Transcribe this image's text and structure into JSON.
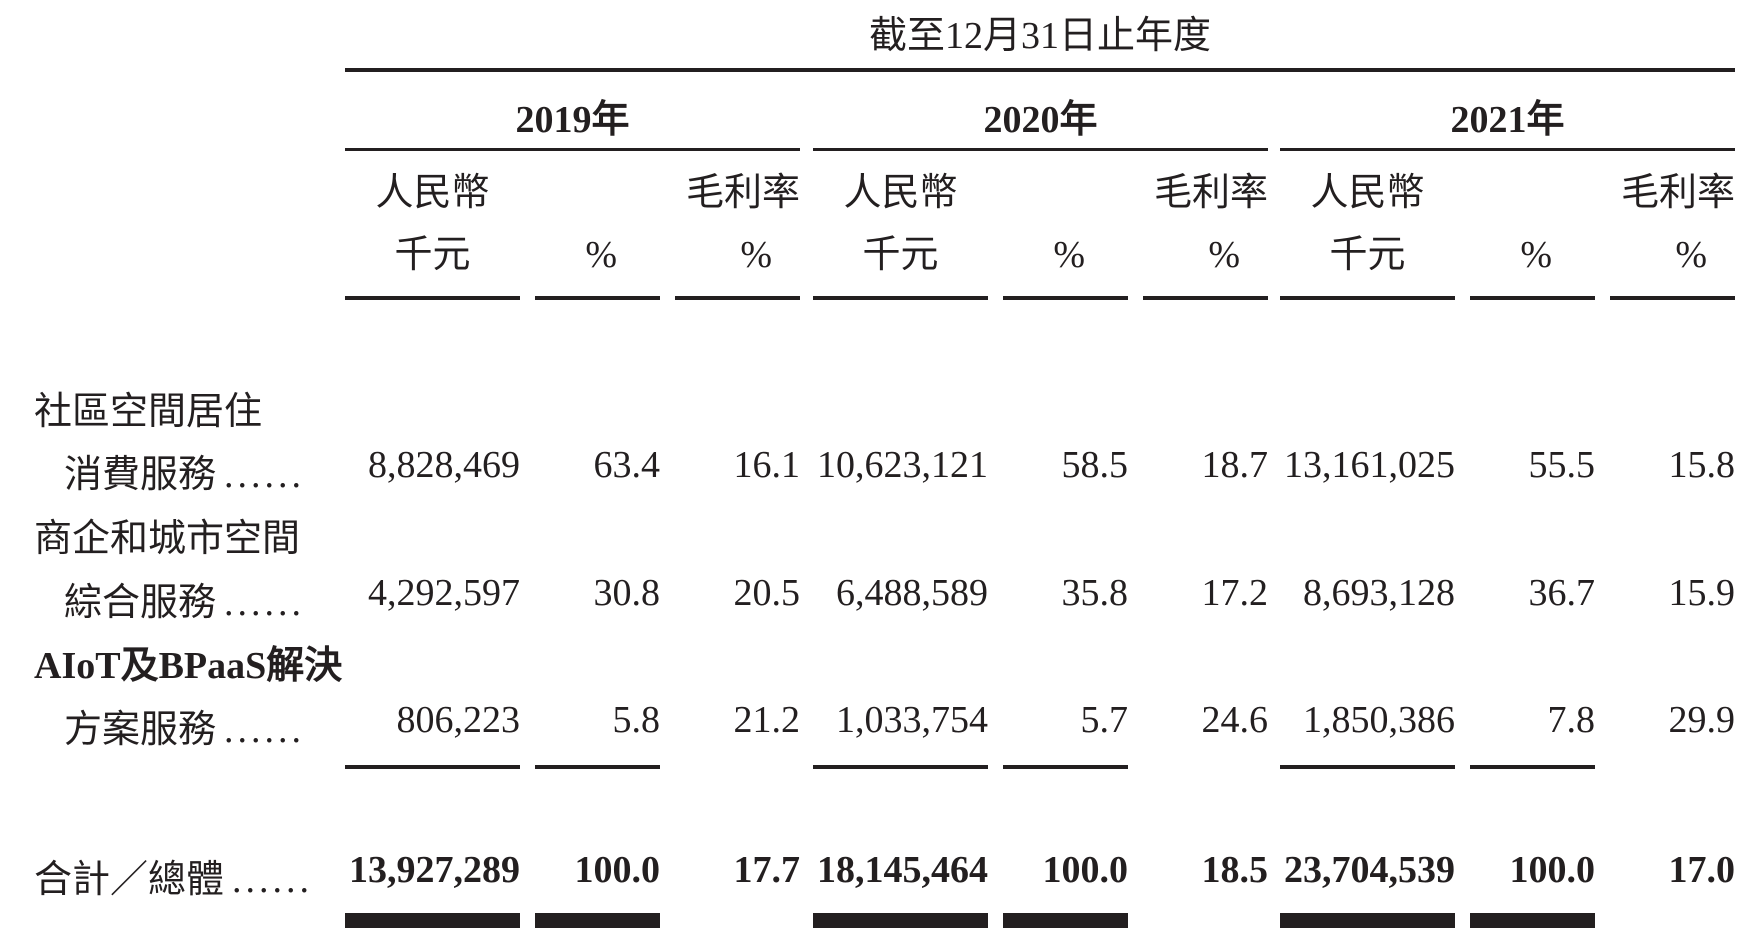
{
  "caption": "截至12月31日止年度",
  "years": [
    "2019年",
    "2020年",
    "2021年"
  ],
  "col_headers": {
    "amount_line1": "人民幣",
    "amount_line2": "千元",
    "pct": "%",
    "margin_line1": "毛利率",
    "margin_line2": "%"
  },
  "rows": [
    {
      "label_line1": "社區空間居住",
      "label_line2": "消費服務",
      "dots": "......",
      "values": [
        "8,828,469",
        "63.4",
        "16.1",
        "10,623,121",
        "58.5",
        "18.7",
        "13,161,025",
        "55.5",
        "15.8"
      ]
    },
    {
      "label_line1": "商企和城市空間",
      "label_line2": "綜合服務",
      "dots": "......",
      "values": [
        "4,292,597",
        "30.8",
        "20.5",
        "6,488,589",
        "35.8",
        "17.2",
        "8,693,128",
        "36.7",
        "15.9"
      ]
    },
    {
      "label_line1": "AIoT及BPaaS解決",
      "label_line2": "方案服務",
      "dots": "......",
      "values": [
        "806,223",
        "5.8",
        "21.2",
        "1,033,754",
        "5.7",
        "24.6",
        "1,850,386",
        "7.8",
        "29.9"
      ]
    }
  ],
  "total": {
    "label": "合計／總體",
    "dots": "......",
    "values": [
      "13,927,289",
      "100.0",
      "17.7",
      "18,145,464",
      "100.0",
      "18.5",
      "23,704,539",
      "100.0",
      "17.0"
    ]
  }
}
